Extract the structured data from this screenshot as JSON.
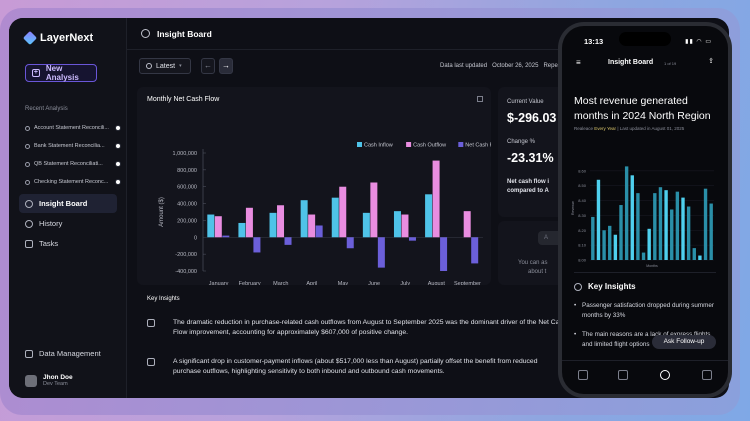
{
  "app": {
    "name": "LayerNext",
    "new_analysis_label": "New Analysis"
  },
  "sidebar": {
    "recent_title": "Recent Analysis",
    "recent": [
      "Account Statement Reconcili...",
      "Bank Statement Reconcilia...",
      "QB Statement Reconciliati...",
      "Checking Statement Reconc..."
    ],
    "nav": [
      {
        "label": "Insight Board",
        "icon": "lightbulb-icon",
        "active": true
      },
      {
        "label": "History",
        "icon": "clock-icon",
        "active": false
      },
      {
        "label": "Tasks",
        "icon": "tasks-icon",
        "active": false
      }
    ],
    "data_management": "Data Management",
    "user": {
      "name": "Jhon Doe",
      "team": "Dev Team"
    }
  },
  "header": {
    "title": "Insight Board"
  },
  "toolbar": {
    "version_select": "Latest",
    "prev_icon": "←",
    "next_icon": "→",
    "updated_label": "Data last updated",
    "updated_date": "October 26, 2025",
    "trailing": "Repe"
  },
  "chart_data": {
    "type": "bar",
    "title": "Monthly Net Cash Flow",
    "xlabel": "Month",
    "ylabel": "Amount ($)",
    "ylim": [
      -400000,
      1000000
    ],
    "yticks": [
      "1,000,000",
      "800,000",
      "600,000",
      "400,000",
      "200,000",
      "0",
      "-200,000",
      "-400,000"
    ],
    "categories": [
      "January",
      "February",
      "March",
      "April",
      "May",
      "June",
      "July",
      "August",
      "September"
    ],
    "series": [
      {
        "name": "Cash Inflow",
        "color": "#4fc3e8",
        "values": [
          270000,
          170000,
          290000,
          440000,
          470000,
          290000,
          310000,
          510000,
          0
        ]
      },
      {
        "name": "Cash Outflow",
        "color": "#e98de0",
        "values": [
          250000,
          350000,
          380000,
          270000,
          600000,
          650000,
          270000,
          910000,
          310000
        ]
      },
      {
        "name": "Net Cash Flow",
        "color": "#6b5fd9",
        "values": [
          20000,
          -180000,
          -90000,
          140000,
          -130000,
          -360000,
          -40000,
          -400000,
          -310000
        ]
      }
    ]
  },
  "metrics": {
    "current_value_label": "Current Value",
    "current_value": "$-296.03",
    "change_label": "Change %",
    "change_value": "-23.31%",
    "note_line1": "Net cash flow i",
    "note_line2": "compared to A",
    "ai_button": "A",
    "ask_line1": "You can as",
    "ask_line2": "about t"
  },
  "insights": {
    "title": "Key Insights",
    "items": [
      "The dramatic reduction in purchase-related cash outflows from August to September 2025 was the dominant driver of the Net Cash Flow improvement, accounting for approximately $607,000 of positive change.",
      "A significant drop in customer-payment inflows (about $517,000 less than August) partially offset the benefit from reduced purchase outflows, highlighting sensitivity to both inbound and outbound cash movements."
    ]
  },
  "phone": {
    "time": "13:13",
    "status_icons": "▮▮ ◠ ▭",
    "title": "Insight Board",
    "count": "1 of 19",
    "headline": "Most revenue generated months in 2024 North Region",
    "meta_prefix": "Realeace",
    "meta_freq": "Every Year",
    "meta_updated": "| Last updated in August 01, 2025",
    "chart_data": {
      "type": "bar",
      "ylabel": "Revenue",
      "xlabel": "Months",
      "ylim": [
        8.0,
        8.7
      ],
      "yticks": [
        "8.60",
        "8.50",
        "8.40",
        "8.30",
        "8.20",
        "8.10",
        "8.00"
      ],
      "values": [
        8.29,
        8.54,
        8.2,
        8.23,
        8.17,
        8.37,
        8.63,
        8.57,
        8.45,
        8.05,
        8.21,
        8.45,
        8.49,
        8.47,
        8.34,
        8.46,
        8.42,
        8.36,
        8.08,
        8.03,
        8.48,
        8.38
      ]
    },
    "ki_title": "Key Insights",
    "bullets": [
      "Passenger satisfaction dropped during summer months by 33%",
      "The main reasons are a lack of express flights and limited flight options"
    ],
    "follow_up": "Ask Follow-up"
  }
}
